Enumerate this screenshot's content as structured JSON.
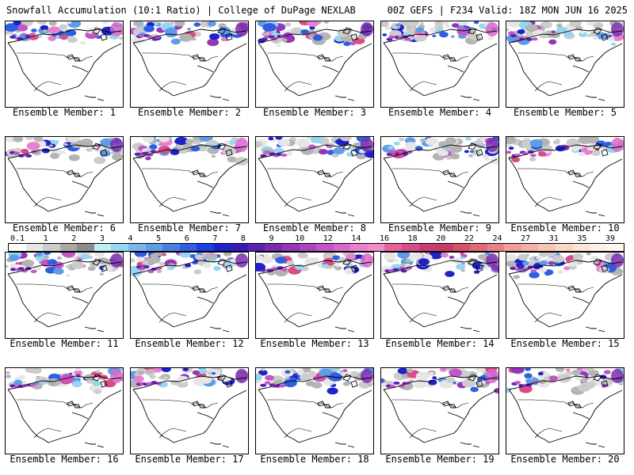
{
  "header": {
    "title_left": "Snowfall Accumulation (10:1 Ratio) | College of DuPage NEXLAB",
    "title_right": "00Z GEFS | F234 Valid: 18Z MON JUN 16 2025"
  },
  "member_prefix": "Ensemble Member: ",
  "members": [
    {
      "label": "Ensemble Member: 1"
    },
    {
      "label": "Ensemble Member: 2"
    },
    {
      "label": "Ensemble Member: 3"
    },
    {
      "label": "Ensemble Member: 4"
    },
    {
      "label": "Ensemble Member: 5"
    },
    {
      "label": "Ensemble Member: 6"
    },
    {
      "label": "Ensemble Member: 7"
    },
    {
      "label": "Ensemble Member: 8"
    },
    {
      "label": "Ensemble Member: 9"
    },
    {
      "label": "Ensemble Member: 10"
    },
    {
      "label": "Ensemble Member: 11"
    },
    {
      "label": "Ensemble Member: 12"
    },
    {
      "label": "Ensemble Member: 13"
    },
    {
      "label": "Ensemble Member: 14"
    },
    {
      "label": "Ensemble Member: 15"
    },
    {
      "label": "Ensemble Member: 16"
    },
    {
      "label": "Ensemble Member: 17"
    },
    {
      "label": "Ensemble Member: 18"
    },
    {
      "label": "Ensemble Member: 19"
    },
    {
      "label": "Ensemble Member: 20"
    }
  ],
  "colorbar": {
    "ticks": [
      "0.1",
      "1",
      "2",
      "3",
      "4",
      "5",
      "6",
      "7",
      "8",
      "9",
      "10",
      "12",
      "14",
      "16",
      "18",
      "20",
      "22",
      "24",
      "27",
      "31",
      "35",
      "39"
    ],
    "colors": [
      "#ffffff",
      "#e6e6e6",
      "#cccccc",
      "#a8a8a8",
      "#8c8c8c",
      "#bdf0f5",
      "#96d7f0",
      "#7ab8ec",
      "#5f9ce8",
      "#4680e6",
      "#2e5fe3",
      "#1b3fe0",
      "#1e22c8",
      "#3a1ab8",
      "#5a20b0",
      "#7a2cb0",
      "#9436b6",
      "#aa44c0",
      "#c455c8",
      "#d868cc",
      "#e87fd0",
      "#f08cc8",
      "#e8609c",
      "#d84c88",
      "#c83c78",
      "#c83c64",
      "#d8506c",
      "#e06878",
      "#e88088",
      "#f09c9c",
      "#f4b0a8",
      "#f8c4b4",
      "#fad6c4",
      "#fce4d6",
      "#fdf0e6",
      "#fef6ee"
    ]
  }
}
